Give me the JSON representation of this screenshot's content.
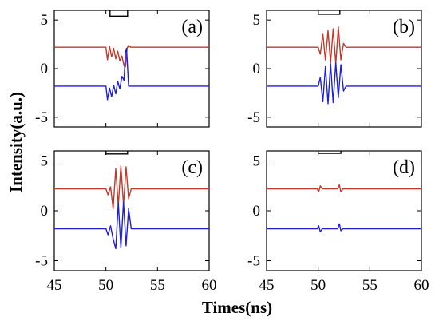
{
  "chart_data": [
    {
      "type": "line",
      "panel_label": "(a)",
      "xlim": [
        45,
        60
      ],
      "ylim": [
        -6,
        6
      ],
      "xticks": [
        "45",
        "50",
        "55",
        "60"
      ],
      "yticks": [
        "5",
        "0",
        "-5"
      ],
      "colors": {
        "upper": "#c0392b",
        "lower": "#1f1fd6",
        "gate": "#000000"
      },
      "gate": {
        "low": 5.4,
        "high": 6.0,
        "x": [
          50.4,
          52.1
        ]
      },
      "series": [
        {
          "x": [
            45,
            50.0,
            50.15,
            50.35,
            50.55,
            50.75,
            50.95,
            51.15,
            51.35,
            51.55,
            51.75,
            51.9,
            52.05,
            52.2,
            52.4,
            60
          ],
          "values": [
            2.2,
            2.2,
            0.9,
            2.3,
            1.2,
            2.1,
            1.0,
            1.8,
            0.8,
            1.3,
            0.3,
            0.2,
            2.1,
            2.4,
            2.2,
            2.2
          ]
        },
        {
          "x": [
            45,
            50.0,
            50.15,
            50.35,
            50.55,
            50.75,
            50.95,
            51.15,
            51.35,
            51.55,
            51.75,
            51.9,
            52.0,
            52.2,
            52.4,
            60
          ],
          "values": [
            -1.8,
            -1.8,
            -3.2,
            -2.0,
            -2.9,
            -1.7,
            -2.6,
            -1.3,
            -2.1,
            -0.8,
            -1.2,
            1.7,
            2.1,
            -1.8,
            -1.8,
            -1.8
          ]
        }
      ]
    },
    {
      "type": "line",
      "panel_label": "(b)",
      "xlim": [
        45,
        60
      ],
      "ylim": [
        -6,
        6
      ],
      "xticks": [
        "45",
        "50",
        "55",
        "60"
      ],
      "yticks": [
        "5",
        "0",
        "-5"
      ],
      "colors": {
        "upper": "#c0392b",
        "lower": "#1f1fd6",
        "gate": "#000000"
      },
      "gate": {
        "low": 5.6,
        "high": 6.0,
        "x": [
          50.0,
          52.1
        ]
      },
      "series": [
        {
          "x": [
            45,
            50.0,
            50.2,
            50.45,
            50.7,
            50.95,
            51.2,
            51.45,
            51.7,
            51.95,
            52.2,
            52.45,
            52.7,
            60
          ],
          "values": [
            2.2,
            2.2,
            1.5,
            3.6,
            0.9,
            3.9,
            0.6,
            4.1,
            0.5,
            4.3,
            0.9,
            2.6,
            2.2,
            2.2
          ]
        },
        {
          "x": [
            45,
            50.0,
            50.2,
            50.45,
            50.7,
            50.95,
            51.2,
            51.45,
            51.7,
            51.95,
            52.2,
            52.45,
            52.7,
            60
          ],
          "values": [
            -1.8,
            -1.8,
            -0.9,
            -3.4,
            0.2,
            -3.6,
            0.5,
            -3.5,
            0.6,
            -3.0,
            0.4,
            -2.3,
            -1.8,
            -1.8
          ]
        }
      ]
    },
    {
      "type": "line",
      "panel_label": "(c)",
      "xlim": [
        45,
        60
      ],
      "ylim": [
        -6,
        6
      ],
      "xticks": [
        "45",
        "50",
        "55",
        "60"
      ],
      "yticks": [
        "5",
        "0",
        "-5"
      ],
      "colors": {
        "upper": "#c0392b",
        "lower": "#1f1fd6",
        "gate": "#000000"
      },
      "gate": {
        "low": 5.7,
        "high": 6.0,
        "x": [
          50.0,
          52.1
        ]
      },
      "series": [
        {
          "x": [
            45,
            50.0,
            50.2,
            50.45,
            50.7,
            50.95,
            51.2,
            51.45,
            51.7,
            51.95,
            52.2,
            52.45,
            60
          ],
          "values": [
            2.2,
            2.2,
            1.6,
            2.4,
            0.2,
            4.2,
            0.5,
            4.5,
            0.6,
            4.4,
            1.2,
            2.2,
            2.2
          ]
        },
        {
          "x": [
            45,
            50.0,
            50.2,
            50.45,
            50.7,
            50.95,
            51.2,
            51.45,
            51.7,
            51.95,
            52.2,
            52.45,
            60
          ],
          "values": [
            -1.8,
            -1.8,
            -2.4,
            -1.5,
            -2.8,
            -3.8,
            0.8,
            -3.7,
            0.9,
            -3.5,
            0.2,
            -1.8,
            -1.8
          ]
        }
      ]
    },
    {
      "type": "line",
      "panel_label": "(d)",
      "xlim": [
        45,
        60
      ],
      "ylim": [
        -6,
        6
      ],
      "xticks": [
        "45",
        "50",
        "55",
        "60"
      ],
      "yticks": [
        "5",
        "0",
        "-5"
      ],
      "colors": {
        "upper": "#c0392b",
        "lower": "#1f1fd6",
        "gate": "#000000"
      },
      "gate": {
        "low": 5.75,
        "high": 6.0,
        "x": [
          50.0,
          52.2
        ]
      },
      "series": [
        {
          "x": [
            45,
            49.9,
            50.05,
            50.2,
            50.4,
            51.9,
            52.05,
            52.2,
            52.4,
            60
          ],
          "values": [
            2.2,
            2.2,
            1.9,
            2.5,
            2.2,
            2.2,
            2.6,
            1.9,
            2.2,
            2.2
          ]
        },
        {
          "x": [
            45,
            49.9,
            50.05,
            50.2,
            50.4,
            51.9,
            52.05,
            52.2,
            52.4,
            60
          ],
          "values": [
            -1.8,
            -1.8,
            -1.5,
            -2.1,
            -1.8,
            -1.8,
            -1.3,
            -2.0,
            -1.8,
            -1.8
          ]
        }
      ]
    }
  ],
  "figure": {
    "ylabel": "Intensity(a.u.)",
    "xlabel": "Times(ns)"
  }
}
